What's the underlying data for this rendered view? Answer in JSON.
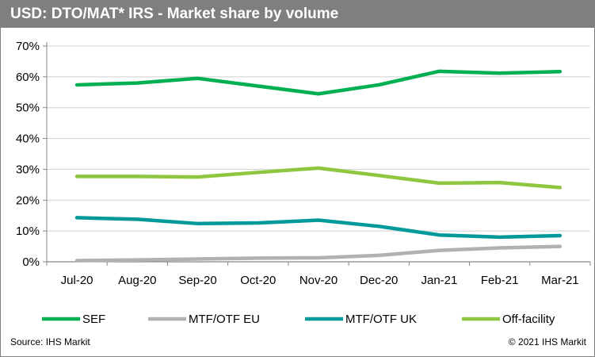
{
  "title": "USD: DTO/MAT* IRS - Market share by volume",
  "footer": {
    "source": "Source: IHS Markit",
    "copyright": "© 2021 IHS Markit"
  },
  "chart_data": {
    "type": "line",
    "title": "USD: DTO/MAT* IRS - Market share by volume",
    "categories": [
      "Jul-20",
      "Aug-20",
      "Sep-20",
      "Oct-20",
      "Nov-20",
      "Dec-20",
      "Jan-21",
      "Feb-21",
      "Mar-21"
    ],
    "ylim": [
      0,
      70
    ],
    "yticks": [
      0,
      10,
      20,
      30,
      40,
      50,
      60,
      70
    ],
    "ytick_labels": [
      "0%",
      "10%",
      "20%",
      "30%",
      "40%",
      "50%",
      "60%",
      "70%"
    ],
    "grid": true,
    "legend_position": "bottom",
    "series": [
      {
        "name": "SEF",
        "color": "#00b050",
        "values": [
          57.4,
          58.0,
          59.5,
          57.0,
          54.5,
          57.4,
          61.8,
          61.2,
          61.7
        ]
      },
      {
        "name": "MTF/OTF EU",
        "color": "#b1b1b5",
        "values": [
          0.4,
          0.6,
          0.9,
          1.2,
          1.3,
          2.1,
          3.7,
          4.5,
          5.0
        ]
      },
      {
        "name": "MTF/OTF UK",
        "color": "#00999a",
        "values": [
          14.3,
          13.8,
          12.4,
          12.6,
          13.5,
          11.5,
          8.7,
          8.0,
          8.5
        ]
      },
      {
        "name": "Off-facility",
        "color": "#8dc63f",
        "values": [
          27.7,
          27.7,
          27.5,
          29.0,
          30.4,
          28.0,
          25.5,
          25.7,
          24.1
        ]
      }
    ]
  }
}
